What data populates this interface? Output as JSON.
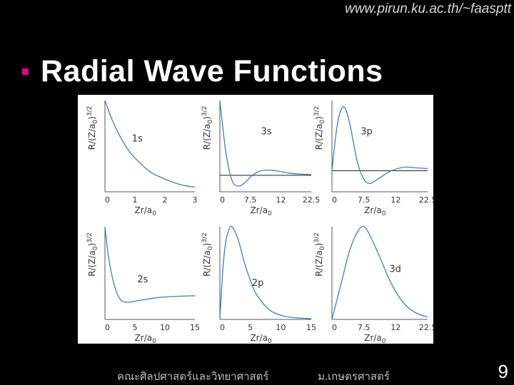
{
  "header": {
    "url": "www.pirun.ku.ac.th/~faasptt"
  },
  "slide": {
    "title": "Radial Wave Functions"
  },
  "footer": {
    "faculty": "คณะศิลปศาสตร์และวิทยาศาสตร์",
    "university": "ม.เกษตรศาสตร์",
    "page_number": "9"
  },
  "colors": {
    "background": "#000000",
    "bullet": "#e0008a",
    "curve": "#3a7fc6",
    "figure_bg": "#ffffff"
  },
  "chart_data": [
    {
      "type": "line",
      "label": "1s",
      "ylabel": "R/(Z/a0)3/2",
      "xlabel": "Zr/a0",
      "xticks": [
        "0",
        "1",
        "2",
        "3"
      ],
      "xlim": [
        0,
        3
      ],
      "x": [
        0,
        0.25,
        0.5,
        0.75,
        1,
        1.5,
        2,
        2.5,
        3
      ],
      "y": [
        1,
        0.78,
        0.61,
        0.47,
        0.37,
        0.22,
        0.14,
        0.08,
        0.05
      ],
      "ylim": [
        0,
        1
      ],
      "zero_line": false
    },
    {
      "type": "line",
      "label": "3s",
      "ylabel": "R/(Z/a0)3/2",
      "xlabel": "Zr/a0",
      "xticks": [
        "0",
        "7.5",
        "12",
        "22.5"
      ],
      "xlim": [
        0,
        22.5
      ],
      "x": [
        0,
        0.8,
        1.5,
        2.5,
        3.5,
        5,
        6.5,
        8,
        10,
        12,
        14,
        17,
        20,
        22.5
      ],
      "y": [
        1,
        0.6,
        0.3,
        0.02,
        -0.12,
        -0.14,
        -0.08,
        0,
        0.06,
        0.07,
        0.06,
        0.03,
        0.015,
        0.01
      ],
      "ylim": [
        -0.22,
        1
      ],
      "zero_line": true
    },
    {
      "type": "line",
      "label": "3p",
      "ylabel": "R/(Z/a0)3/2",
      "xlabel": "Zr/a0",
      "xticks": [
        "0",
        "7.5",
        "12",
        "22.5"
      ],
      "xlim": [
        0,
        22.5
      ],
      "x": [
        0,
        1,
        2,
        3,
        4,
        5,
        6,
        7,
        8,
        9,
        10,
        12,
        14,
        17,
        20,
        22.5
      ],
      "y": [
        0,
        0.55,
        0.85,
        0.9,
        0.72,
        0.42,
        0.12,
        -0.06,
        -0.16,
        -0.18,
        -0.15,
        -0.07,
        0,
        0.05,
        0.04,
        0.03
      ],
      "ylim": [
        -0.3,
        1
      ],
      "zero_line": true
    },
    {
      "type": "line",
      "label": "2s",
      "ylabel": "R/(Z/a0)3/2",
      "xlabel": "Zr/a0",
      "xticks": [
        "0",
        "5",
        "10",
        "15"
      ],
      "xlim": [
        0,
        15
      ],
      "x": [
        0,
        0.5,
        1,
        1.5,
        2,
        2.5,
        3,
        4,
        5,
        7,
        9,
        11,
        13,
        15
      ],
      "y": [
        1,
        0.62,
        0.36,
        0.17,
        0.03,
        -0.05,
        -0.09,
        -0.1,
        -0.085,
        -0.055,
        -0.03,
        -0.018,
        -0.01,
        -0.005
      ],
      "ylim": [
        -0.35,
        1
      ],
      "zero_line": false
    },
    {
      "type": "line",
      "label": "2p",
      "ylabel": "R/(Z/a0)3/2",
      "xlabel": "Zr/a0",
      "xticks": [
        "0",
        "5",
        "10",
        "15"
      ],
      "xlim": [
        0,
        15
      ],
      "x": [
        0,
        0.5,
        1,
        1.5,
        2,
        3,
        4,
        5,
        6,
        8,
        10,
        12,
        15
      ],
      "y": [
        0,
        0.55,
        0.85,
        0.97,
        1,
        0.86,
        0.62,
        0.42,
        0.27,
        0.11,
        0.045,
        0.02,
        0.008
      ],
      "ylim": [
        0,
        1
      ],
      "zero_line": false
    },
    {
      "type": "line",
      "label": "3d",
      "ylabel": "R/(Z/a0)3/2",
      "xlabel": "Zr/a0",
      "xticks": [
        "0",
        "7.5",
        "12",
        "22.5"
      ],
      "xlim": [
        0,
        22.5
      ],
      "x": [
        0,
        1,
        2.5,
        4,
        5.5,
        7,
        8,
        9,
        11,
        13,
        15,
        17,
        19,
        21,
        22.5
      ],
      "y": [
        0,
        0.18,
        0.45,
        0.72,
        0.9,
        1,
        0.98,
        0.9,
        0.7,
        0.48,
        0.3,
        0.17,
        0.09,
        0.045,
        0.03
      ],
      "ylim": [
        0,
        1
      ],
      "zero_line": false
    }
  ]
}
